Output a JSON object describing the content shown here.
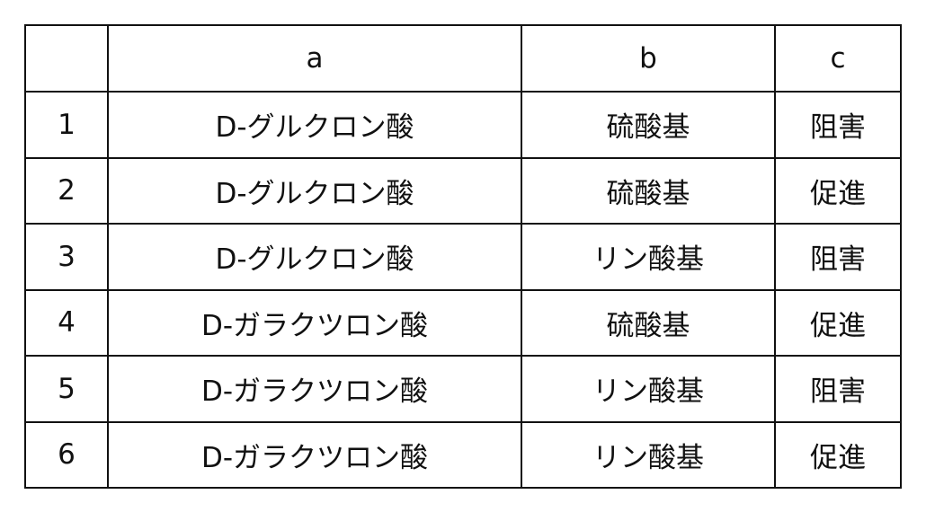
{
  "table": {
    "headers": [
      "",
      "a",
      "b",
      "c"
    ],
    "rows": [
      [
        "1",
        "D-グルクロン酸",
        "硫酸基",
        "阻害"
      ],
      [
        "2",
        "D-グルクロン酸",
        "硫酸基",
        "促進"
      ],
      [
        "3",
        "D-グルクロン酸",
        "リン酸基",
        "阻害"
      ],
      [
        "4",
        "D-ガラクツロン酸",
        "硫酸基",
        "促進"
      ],
      [
        "5",
        "D-ガラクツロン酸",
        "リン酸基",
        "阻害"
      ],
      [
        "6",
        "D-ガラクツロン酸",
        "リン酸基",
        "促進"
      ]
    ]
  }
}
